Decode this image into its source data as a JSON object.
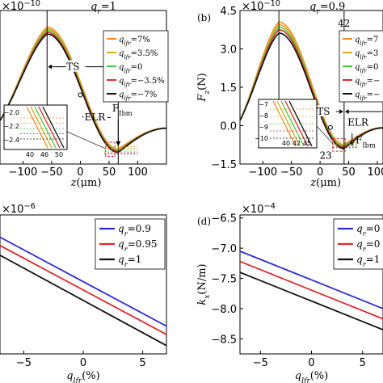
{
  "chart_data": [
    {
      "panel": "a",
      "type": "line",
      "exponent_label": "×10",
      "exponent_power": "−10",
      "title": "q",
      "title_sub": "r",
      "title_value": "=1",
      "xlabel": "z(μm)",
      "x_ticks": [
        -100,
        -50,
        0,
        50,
        100
      ],
      "x_tick_labels": [
        "−100",
        "−50",
        "0",
        "50",
        "100"
      ],
      "xlim": [
        -140,
        150
      ],
      "ylim": [
        -1.5,
        4.5
      ],
      "legend": [
        {
          "prefix": "q",
          "sub": "lfr",
          "text": "=7%",
          "color": "#ff8a1f"
        },
        {
          "prefix": "q",
          "sub": "lfr",
          "text": "=3.5%",
          "color": "#e0aa20"
        },
        {
          "prefix": "q",
          "sub": "lfr",
          "text": "=0",
          "color": "#44cc44"
        },
        {
          "prefix": "q",
          "sub": "lfr",
          "text": "=−3.5%",
          "color": "#e0282e"
        },
        {
          "prefix": "q",
          "sub": "lfr",
          "text": "=−7%",
          "color": "#111111"
        }
      ],
      "annotations": {
        "ts": "TS",
        "elr": "ELR",
        "fibm": "F",
        "fibm_sub": "Ibm"
      },
      "inset": {
        "y_ticks": [
          "−2.0",
          "−2.2",
          "−2.4"
        ],
        "x_ticks": [
          "40",
          "46",
          "50"
        ]
      },
      "series": [
        {
          "color": "#ff8a1f",
          "peak": [
            -58,
            3.85
          ],
          "valley": [
            66,
            -0.92
          ]
        },
        {
          "color": "#e0aa20",
          "peak": [
            -58,
            3.78
          ],
          "valley": [
            66,
            -0.95
          ]
        },
        {
          "color": "#44cc44",
          "peak": [
            -58,
            3.72
          ],
          "valley": [
            66,
            -0.98
          ]
        },
        {
          "color": "#e0282e",
          "peak": [
            -58,
            3.65
          ],
          "valley": [
            66,
            -1.01
          ]
        },
        {
          "color": "#111111",
          "peak": [
            -58,
            3.58
          ],
          "valley": [
            66,
            -1.05
          ]
        }
      ]
    },
    {
      "panel": "b",
      "type": "line",
      "panel_label": "(b)",
      "exponent_label": "×10",
      "exponent_power": "−10",
      "title": "q",
      "title_sub": "r",
      "title_value": "=0.9",
      "top_value": "42",
      "xlabel": "z(μm)",
      "ylabel": "F",
      "ylabel_sub": "z",
      "ylabel_unit": "(N)",
      "x_ticks": [
        -100,
        -50,
        0,
        50,
        100
      ],
      "x_tick_labels": [
        "−100",
        "−50",
        "0",
        "50",
        "100"
      ],
      "y_ticks": [
        -1.5,
        0,
        1.5,
        3,
        4.5
      ],
      "y_tick_labels": [
        "−1.5",
        "0.0",
        "1.5",
        "3.0",
        "4.5"
      ],
      "xlim": [
        -140,
        110
      ],
      "ylim": [
        -1.5,
        4.5
      ],
      "legend": [
        {
          "prefix": "q",
          "sub": "lfr",
          "text": "=7",
          "color": "#ff8a1f"
        },
        {
          "prefix": "q",
          "sub": "lfr",
          "text": "=3",
          "color": "#e0aa20"
        },
        {
          "prefix": "q",
          "sub": "lfr",
          "text": "=0",
          "color": "#44cc44"
        },
        {
          "prefix": "q",
          "sub": "lfr",
          "text": "=−",
          "color": "#e0282e"
        },
        {
          "prefix": "q",
          "sub": "lfr",
          "text": "=−",
          "color": "#111111"
        }
      ],
      "annotations": {
        "ts": "TS",
        "elr": "ELR",
        "fibm": "F",
        "fibm_sub": "Ibm",
        "marker": "23"
      },
      "inset": {
        "y_ticks": [
          "−7",
          "−8",
          "−9",
          "−10"
        ],
        "x_ticks": [
          "40",
          "42",
          "45"
        ]
      },
      "series": [
        {
          "color": "#ff8a1f",
          "peak": [
            -72,
            4.05
          ],
          "valley": [
            42,
            -0.75
          ]
        },
        {
          "color": "#e0aa20",
          "peak": [
            -72,
            3.95
          ],
          "valley": [
            42,
            -0.78
          ]
        },
        {
          "color": "#44cc44",
          "peak": [
            -72,
            3.85
          ],
          "valley": [
            42,
            -0.81
          ]
        },
        {
          "color": "#e0282e",
          "peak": [
            -72,
            3.75
          ],
          "valley": [
            42,
            -0.85
          ]
        },
        {
          "color": "#111111",
          "peak": [
            -72,
            3.62
          ],
          "valley": [
            42,
            -0.9
          ]
        }
      ]
    },
    {
      "panel": "c",
      "type": "line",
      "exponent_label": "×10",
      "exponent_power": "−6",
      "xlabel": "q",
      "xlabel_sub": "lfr",
      "xlabel_unit": "(%)",
      "x_ticks": [
        -5,
        0,
        5
      ],
      "x_tick_labels": [
        "−5",
        "0",
        "5"
      ],
      "xlim": [
        -7,
        7
      ],
      "ylim": [
        0,
        1
      ],
      "legend": [
        {
          "prefix": "q",
          "sub": "r",
          "text": "=0.9",
          "color": "#2b2bd9"
        },
        {
          "prefix": "q",
          "sub": "r",
          "text": "=0.95",
          "color": "#e0282e"
        },
        {
          "prefix": "q",
          "sub": "r",
          "text": "=1",
          "color": "#111111"
        }
      ],
      "series": [
        {
          "color": "#2b2bd9",
          "x": [
            -7,
            7
          ],
          "y": [
            0.84,
            0.2
          ]
        },
        {
          "color": "#e0282e",
          "x": [
            -7,
            7
          ],
          "y": [
            0.78,
            0.14
          ]
        },
        {
          "color": "#111111",
          "x": [
            -7,
            7
          ],
          "y": [
            0.71,
            0.06
          ]
        }
      ]
    },
    {
      "panel": "d",
      "type": "line",
      "panel_label": "(d)",
      "exponent_label": "×10",
      "exponent_power": "−4",
      "ylabel": "k",
      "ylabel_sub": "x",
      "ylabel_unit": "(N/m)",
      "xlabel": "q",
      "xlabel_sub": "lfr",
      "xlabel_unit": "(%)",
      "x_ticks": [
        -5,
        0,
        5
      ],
      "x_tick_labels": [
        "−5",
        "0",
        "5"
      ],
      "y_ticks": [
        -6.5,
        -7.0,
        -7.5,
        -8.0,
        -8.5
      ],
      "y_tick_labels": [
        "−6.5",
        "−7.0",
        "−7.5",
        "−8.0",
        "−8.5"
      ],
      "xlim": [
        -7,
        7
      ],
      "ylim": [
        -8.75,
        -6.45
      ],
      "legend": [
        {
          "prefix": "q",
          "sub": "r",
          "text": "=0",
          "color": "#2b2bd9"
        },
        {
          "prefix": "q",
          "sub": "r",
          "text": "=0",
          "color": "#e0282e"
        },
        {
          "prefix": "q",
          "sub": "r",
          "text": "=1",
          "color": "#111111"
        }
      ],
      "series": [
        {
          "color": "#2b2bd9",
          "x": [
            -7,
            7
          ],
          "y": [
            -7.05,
            -8.0
          ]
        },
        {
          "color": "#e0282e",
          "x": [
            -7,
            7
          ],
          "y": [
            -7.22,
            -8.17
          ]
        },
        {
          "color": "#111111",
          "x": [
            -7,
            7
          ],
          "y": [
            -7.4,
            -8.35
          ]
        }
      ]
    }
  ]
}
